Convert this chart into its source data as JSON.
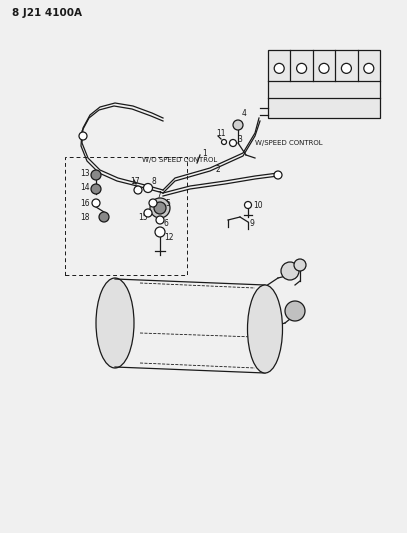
{
  "bg_color": "#f0f0f0",
  "line_color": "#1a1a1a",
  "text_color": "#1a1a1a",
  "figsize": [
    4.07,
    5.33
  ],
  "dpi": 100,
  "part_num": "8 J21 4100A",
  "wo_speed": "W/O SPEED CONTROL",
  "w_speed": "W/SPEED CONTROL"
}
